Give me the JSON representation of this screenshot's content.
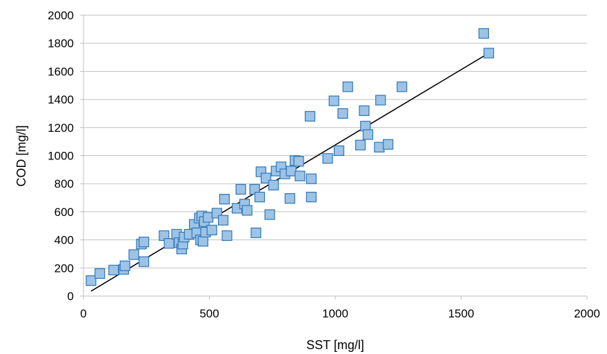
{
  "chart_data": {
    "type": "scatter",
    "title": "",
    "xlabel": "SST [mg/l]",
    "ylabel": "COD [mg/l]",
    "xlim": [
      0,
      2000
    ],
    "ylim": [
      0,
      2000
    ],
    "x_ticks": [
      0,
      500,
      1000,
      1500,
      2000
    ],
    "y_ticks": [
      0,
      200,
      400,
      600,
      800,
      1000,
      1200,
      1400,
      1600,
      1800,
      2000
    ],
    "grid": "horizontal",
    "legend": "none",
    "colors": {
      "marker_fill": "#9dc3e6",
      "marker_stroke": "#2e75b6",
      "trendline": "#000000",
      "grid": "#bfbfbf"
    },
    "series": [
      {
        "marker": "square",
        "points": [
          [
            30,
            110
          ],
          [
            65,
            160
          ],
          [
            120,
            185
          ],
          [
            160,
            190
          ],
          [
            165,
            215
          ],
          [
            200,
            295
          ],
          [
            230,
            370
          ],
          [
            240,
            245
          ],
          [
            240,
            385
          ],
          [
            320,
            430
          ],
          [
            340,
            375
          ],
          [
            370,
            440
          ],
          [
            380,
            380
          ],
          [
            390,
            335
          ],
          [
            395,
            370
          ],
          [
            400,
            420
          ],
          [
            420,
            440
          ],
          [
            440,
            510
          ],
          [
            450,
            450
          ],
          [
            460,
            555
          ],
          [
            465,
            400
          ],
          [
            470,
            570
          ],
          [
            475,
            390
          ],
          [
            480,
            530
          ],
          [
            485,
            455
          ],
          [
            495,
            560
          ],
          [
            510,
            470
          ],
          [
            530,
            590
          ],
          [
            555,
            540
          ],
          [
            560,
            690
          ],
          [
            570,
            430
          ],
          [
            610,
            625
          ],
          [
            625,
            760
          ],
          [
            640,
            655
          ],
          [
            650,
            610
          ],
          [
            680,
            760
          ],
          [
            685,
            450
          ],
          [
            700,
            705
          ],
          [
            705,
            885
          ],
          [
            725,
            840
          ],
          [
            740,
            580
          ],
          [
            755,
            790
          ],
          [
            765,
            890
          ],
          [
            785,
            920
          ],
          [
            800,
            870
          ],
          [
            820,
            695
          ],
          [
            825,
            890
          ],
          [
            840,
            965
          ],
          [
            855,
            960
          ],
          [
            860,
            855
          ],
          [
            900,
            1280
          ],
          [
            905,
            705
          ],
          [
            905,
            835
          ],
          [
            970,
            980
          ],
          [
            995,
            1390
          ],
          [
            1015,
            1035
          ],
          [
            1030,
            1300
          ],
          [
            1050,
            1490
          ],
          [
            1100,
            1075
          ],
          [
            1115,
            1320
          ],
          [
            1120,
            1210
          ],
          [
            1130,
            1150
          ],
          [
            1175,
            1060
          ],
          [
            1180,
            1395
          ],
          [
            1210,
            1080
          ],
          [
            1265,
            1490
          ],
          [
            1590,
            1870
          ],
          [
            1610,
            1730
          ]
        ]
      }
    ],
    "trendline": {
      "x": [
        30,
        1610
      ],
      "y": [
        35,
        1730
      ]
    }
  }
}
